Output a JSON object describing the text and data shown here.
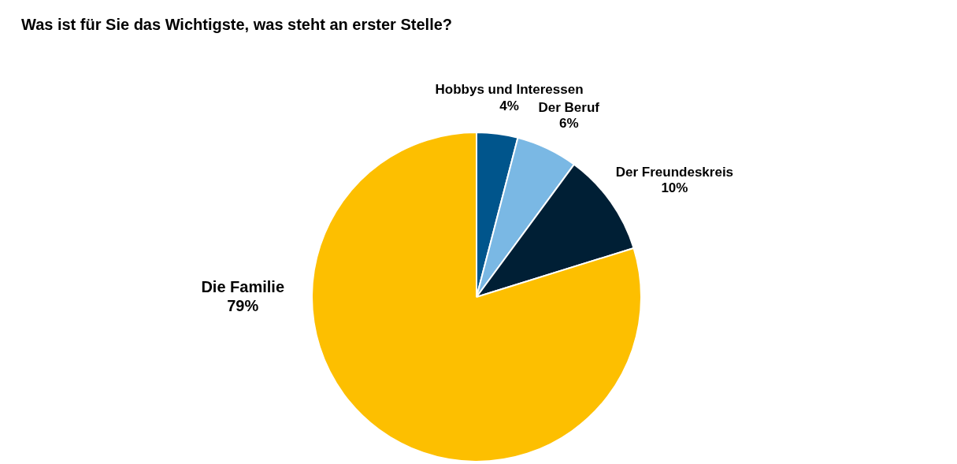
{
  "chart_data": {
    "type": "pie",
    "title": "Was ist für Sie das Wichtigste, was steht an erster Stelle?",
    "categories": [
      "Hobbys und Interessen",
      "Der Beruf",
      "Der Freundeskreis",
      "Die Familie"
    ],
    "values": [
      4,
      6,
      10,
      79
    ],
    "colors": [
      "#00558c",
      "#7ab8e4",
      "#001f35",
      "#fdbf00"
    ],
    "value_labels": [
      "4%",
      "6%",
      "10%",
      "79%"
    ]
  }
}
